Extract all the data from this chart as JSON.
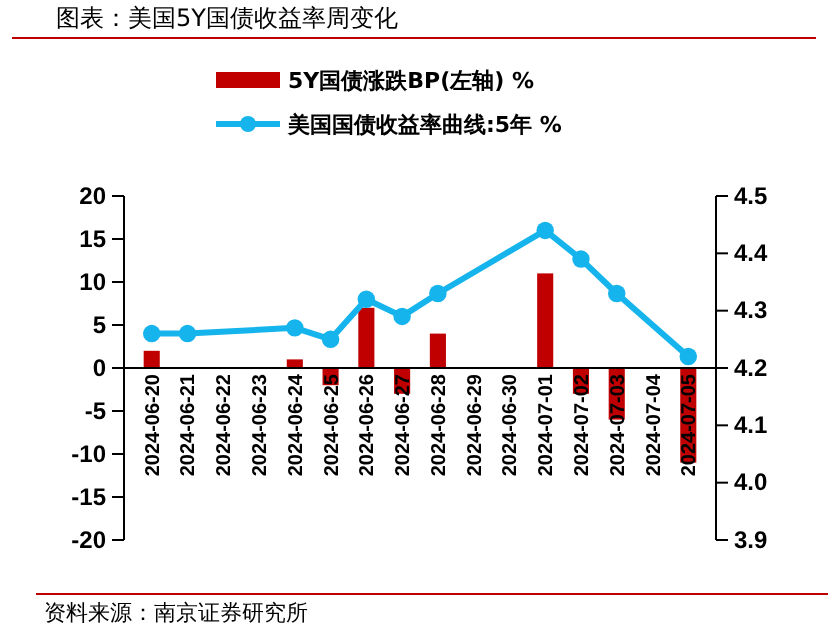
{
  "chart_data": {
    "type": "bar",
    "title": "图表：美国5Y国债收益率周变化",
    "categories": [
      "2024-06-20",
      "2024-06-21",
      "2024-06-22",
      "2024-06-23",
      "2024-06-24",
      "2024-06-25",
      "2024-06-26",
      "2024-06-27",
      "2024-06-28",
      "2024-06-29",
      "2024-06-30",
      "2024-07-01",
      "2024-07-02",
      "2024-07-03",
      "2024-07-04",
      "2024-07-05"
    ],
    "series": [
      {
        "name": "5Y国债涨跌BP(左轴) %",
        "color": "#c00000",
        "values": [
          2,
          null,
          null,
          null,
          1,
          -2,
          7,
          -3,
          4,
          null,
          null,
          11,
          -3,
          -6,
          null,
          -11
        ]
      },
      {
        "name": "美国国债收益率曲线:5年 %",
        "type": "line",
        "axis": "y2",
        "color": "#16b4ec",
        "values": [
          4.26,
          4.26,
          null,
          null,
          4.27,
          4.25,
          4.32,
          4.29,
          4.33,
          null,
          null,
          4.44,
          4.39,
          4.33,
          null,
          4.22
        ]
      }
    ],
    "ylim": [
      -20,
      20
    ],
    "yticks": [
      -20,
      -15,
      -10,
      -5,
      0,
      5,
      10,
      15,
      20
    ],
    "y2lim": [
      3.9,
      4.5
    ],
    "y2ticks": [
      {
        "value": 3.9,
        "label": "3.9"
      },
      {
        "value": 4.0,
        "label": "4.0"
      },
      {
        "value": 4.1,
        "label": "4.1"
      },
      {
        "value": 4.2,
        "label": "4.2"
      },
      {
        "value": 4.3,
        "label": "4.3"
      },
      {
        "value": 4.4,
        "label": "4.4"
      },
      {
        "value": 4.5,
        "label": "4.5"
      }
    ],
    "legend": "top",
    "marker": "circle",
    "line_style": "solid",
    "annotations": [
      "资料来源：南京证券研究所"
    ]
  }
}
